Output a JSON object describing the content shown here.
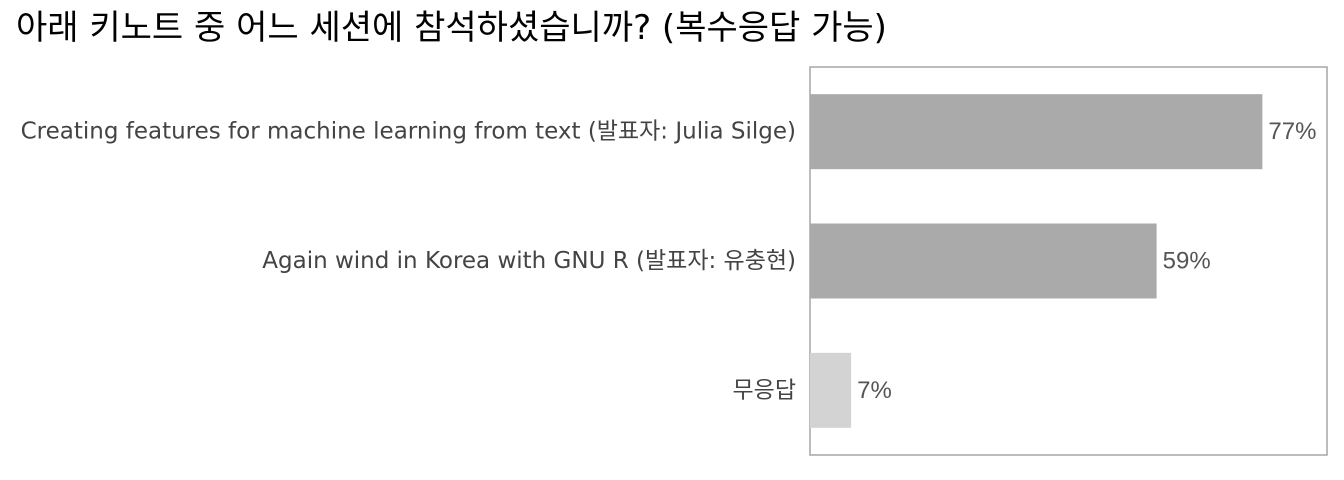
{
  "chart_data": {
    "type": "bar",
    "orientation": "horizontal",
    "title": "아래 키노트 중 어느 세션에 참석하셨습니까? (복수응답 가능)",
    "categories": [
      "Creating features for machine learning from text (발표자: Julia Silge)",
      "Again wind in Korea with GNU R (발표자: 유충현)",
      "무응답"
    ],
    "values": [
      77,
      59,
      7
    ],
    "value_labels": [
      "77%",
      "59%",
      "7%"
    ],
    "colors": [
      "#aaaaaa",
      "#aaaaaa",
      "#d3d3d3"
    ],
    "xlim": [
      0,
      88
    ],
    "xlabel": "",
    "ylabel": "",
    "grid": false,
    "legend": "none",
    "panel_border": true
  }
}
